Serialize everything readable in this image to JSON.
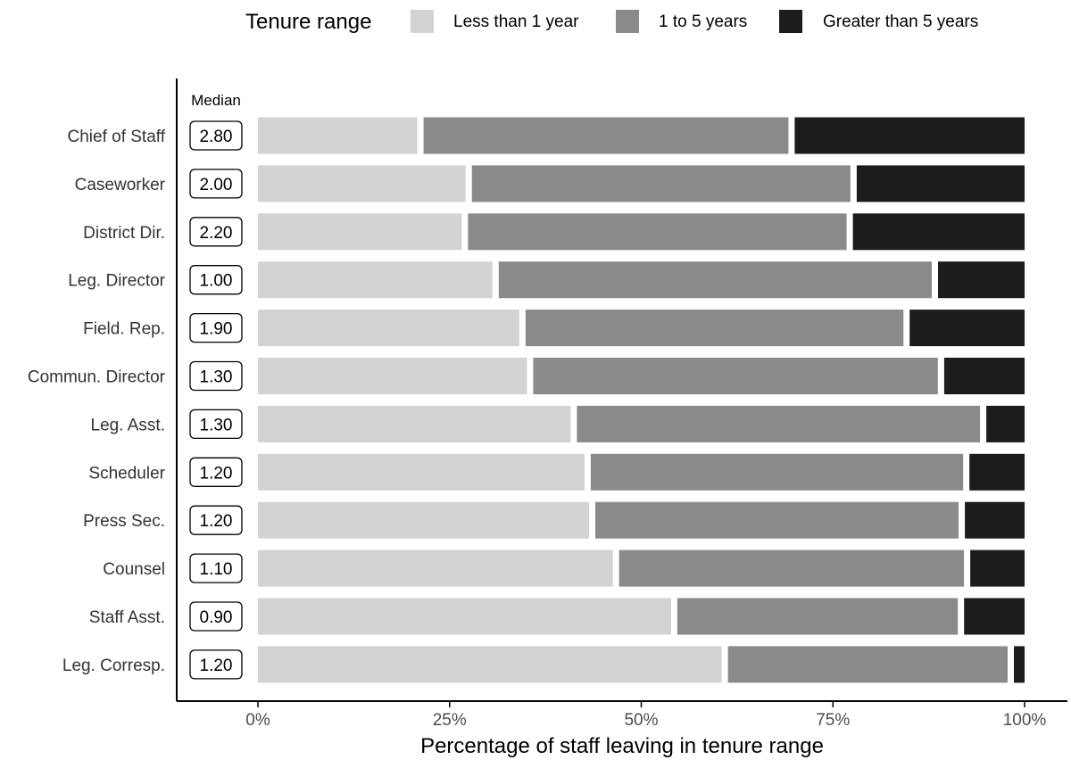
{
  "chart_data": {
    "type": "bar",
    "orientation": "horizontal",
    "stacked": "percent",
    "xlabel": "Percentage of staff leaving in tenure range",
    "ylabel": "",
    "xlim": [
      0,
      100
    ],
    "x_ticks": [
      {
        "value": 0,
        "label": "0%"
      },
      {
        "value": 25,
        "label": "25%"
      },
      {
        "value": 50,
        "label": "50%"
      },
      {
        "value": 75,
        "label": "75%"
      },
      {
        "value": 100,
        "label": "100%"
      }
    ],
    "legend": {
      "title": "Tenure range",
      "placement": "top",
      "entries": [
        "Less than 1 year",
        "1 to 5 years",
        "Greater than 5 years"
      ]
    },
    "median_header": "Median",
    "categories": [
      "Chief of Staff",
      "Caseworker",
      "District Dir.",
      "Leg. Director",
      "Field. Rep.",
      "Commun. Director",
      "Leg. Asst.",
      "Scheduler",
      "Press Sec.",
      "Counsel",
      "Staff Asst.",
      "Leg. Corresp."
    ],
    "medians": [
      "2.80",
      "2.00",
      "2.20",
      "1.00",
      "1.90",
      "1.30",
      "1.30",
      "1.20",
      "1.20",
      "1.10",
      "0.90",
      "1.20"
    ],
    "series": [
      {
        "name": "Less than 1 year",
        "color": "#d3d3d3",
        "values": [
          21.2,
          27.5,
          27.0,
          31.0,
          34.5,
          35.5,
          41.2,
          43.0,
          43.6,
          46.7,
          54.3,
          60.9
        ]
      },
      {
        "name": "1 to 5 years",
        "color": "#8a8a8a",
        "values": [
          48.4,
          50.2,
          50.2,
          57.3,
          50.1,
          53.6,
          53.4,
          49.4,
          48.2,
          45.8,
          37.4,
          37.3
        ]
      },
      {
        "name": "Greater than 5 years",
        "color": "#1c1c1c",
        "values": [
          30.4,
          22.3,
          22.8,
          11.7,
          15.4,
          10.9,
          5.4,
          7.6,
          8.2,
          7.5,
          8.3,
          1.8
        ]
      }
    ],
    "grid": false
  }
}
